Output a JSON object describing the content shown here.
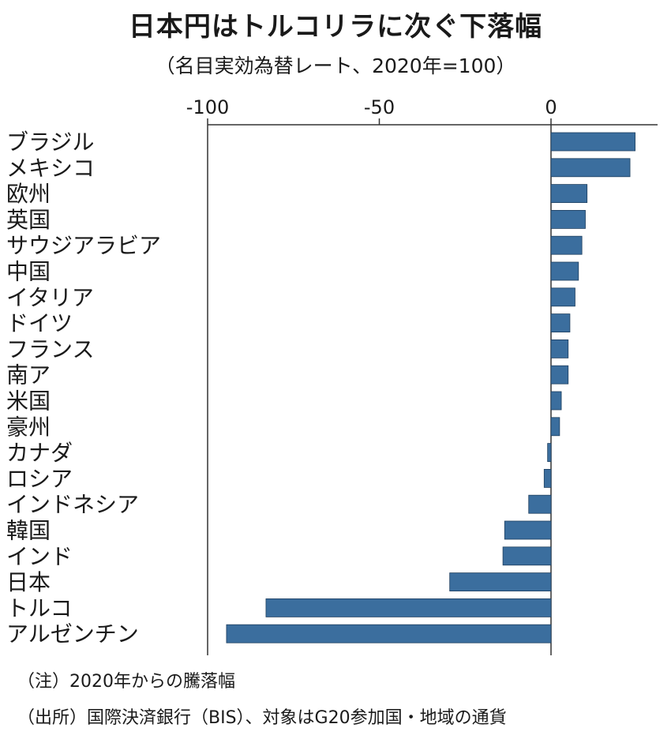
{
  "title": "日本円はトルコリラに次ぐ下落幅",
  "subtitle": "（名目実効為替レート、2020年=100）",
  "notes": {
    "note": "（注）2020年からの騰落幅",
    "source": "（出所）国際決済銀行（BIS）、対象はG20参加国・地域の通貨"
  },
  "colors": {
    "bar": "#3b6e9e",
    "axis": "#333333"
  },
  "chart_data": {
    "type": "bar",
    "orientation": "horizontal",
    "categories": [
      "ブラジル",
      "メキシコ",
      "欧州",
      "英国",
      "サウジアラビア",
      "中国",
      "イタリア",
      "ドイツ",
      "フランス",
      "南ア",
      "米国",
      "豪州",
      "カナダ",
      "ロシア",
      "インドネシア",
      "韓国",
      "インド",
      "日本",
      "トルコ",
      "アルゼンチン"
    ],
    "values": [
      24.5,
      23,
      10.5,
      10,
      9,
      8,
      7,
      5.5,
      5,
      5,
      3,
      2.5,
      -1,
      -2,
      -6.5,
      -13.5,
      -14,
      -29.5,
      -83,
      -94.5
    ],
    "xticks": [
      -100,
      -50,
      0
    ],
    "xtick_labels": [
      "-100",
      "-50",
      "0"
    ],
    "xlim": [
      -100,
      30
    ],
    "tick_position": "top",
    "grid": false
  }
}
